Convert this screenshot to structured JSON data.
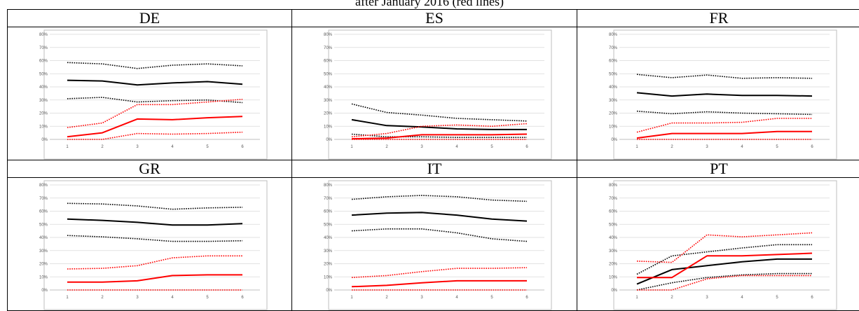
{
  "page": {
    "title": "after January 2016 (red lines)"
  },
  "chart_data": [
    {
      "type": "line",
      "panel": "DE",
      "x": [
        1,
        2,
        3,
        4,
        5,
        6
      ],
      "y_ticks": [
        "0%",
        "10%",
        "20%",
        "30%",
        "40%",
        "50%",
        "60%",
        "70%",
        "80%"
      ],
      "ylim": [
        0,
        80
      ],
      "grid": true,
      "series": [
        {
          "color": "#000000",
          "style": "dotted",
          "values": [
            58.5,
            57.5,
            54,
            56.5,
            57.5,
            56
          ]
        },
        {
          "color": "#000000",
          "style": "solid",
          "values": [
            45,
            44.5,
            41.5,
            43,
            44,
            42
          ]
        },
        {
          "color": "#000000",
          "style": "dotted",
          "values": [
            31,
            32,
            28.5,
            29.5,
            30,
            28
          ]
        },
        {
          "color": "#ff0000",
          "style": "dotted",
          "values": [
            9,
            12.5,
            26.5,
            26.5,
            28.5,
            30.5
          ]
        },
        {
          "color": "#ff0000",
          "style": "solid",
          "values": [
            2,
            5,
            15.5,
            15,
            16.5,
            17.5
          ]
        },
        {
          "color": "#ff0000",
          "style": "dotted",
          "values": [
            0,
            0,
            4.5,
            4,
            4.5,
            5.5
          ]
        }
      ]
    },
    {
      "type": "line",
      "panel": "ES",
      "x": [
        1,
        2,
        3,
        4,
        5,
        6
      ],
      "y_ticks": [
        "0%",
        "10%",
        "20%",
        "30%",
        "40%",
        "50%",
        "60%",
        "70%",
        "80%"
      ],
      "ylim": [
        0,
        80
      ],
      "grid": true,
      "series": [
        {
          "color": "#000000",
          "style": "dotted",
          "values": [
            27,
            20.5,
            18.5,
            16,
            15,
            14
          ]
        },
        {
          "color": "#000000",
          "style": "solid",
          "values": [
            15,
            10.5,
            9.5,
            8,
            7.5,
            7.5
          ]
        },
        {
          "color": "#000000",
          "style": "dotted",
          "values": [
            4,
            2,
            2,
            1.5,
            1.5,
            1.5
          ]
        },
        {
          "color": "#ff0000",
          "style": "dotted",
          "values": [
            2,
            4.5,
            10,
            11,
            10,
            12
          ]
        },
        {
          "color": "#ff0000",
          "style": "solid",
          "values": [
            0.5,
            1,
            3.5,
            3.5,
            3.5,
            4
          ]
        },
        {
          "color": "#ff0000",
          "style": "dotted",
          "values": [
            0,
            0,
            0,
            0,
            0,
            0
          ]
        }
      ]
    },
    {
      "type": "line",
      "panel": "FR",
      "x": [
        1,
        2,
        3,
        4,
        5,
        6
      ],
      "y_ticks": [
        "0%",
        "10%",
        "20%",
        "30%",
        "40%",
        "50%",
        "60%",
        "70%",
        "80%"
      ],
      "ylim": [
        0,
        80
      ],
      "grid": true,
      "series": [
        {
          "color": "#000000",
          "style": "dotted",
          "values": [
            49.5,
            47,
            49,
            46.5,
            47,
            46.5
          ]
        },
        {
          "color": "#000000",
          "style": "solid",
          "values": [
            35.5,
            33,
            34.5,
            33.5,
            33.5,
            33
          ]
        },
        {
          "color": "#000000",
          "style": "dotted",
          "values": [
            21.5,
            19.5,
            21,
            20,
            19.5,
            19
          ]
        },
        {
          "color": "#ff0000",
          "style": "dotted",
          "values": [
            5.5,
            12.5,
            12.5,
            13,
            16,
            16
          ]
        },
        {
          "color": "#ff0000",
          "style": "solid",
          "values": [
            1,
            4.5,
            4.5,
            4.5,
            6,
            6
          ]
        },
        {
          "color": "#ff0000",
          "style": "dotted",
          "values": [
            0,
            0,
            0,
            0,
            0,
            0
          ]
        }
      ]
    },
    {
      "type": "line",
      "panel": "GR",
      "x": [
        1,
        2,
        3,
        4,
        5,
        6
      ],
      "y_ticks": [
        "0%",
        "10%",
        "20%",
        "30%",
        "40%",
        "50%",
        "60%",
        "70%",
        "80%"
      ],
      "ylim": [
        0,
        80
      ],
      "grid": true,
      "series": [
        {
          "color": "#000000",
          "style": "dotted",
          "values": [
            66,
            65.5,
            64,
            61.5,
            62.5,
            63
          ]
        },
        {
          "color": "#000000",
          "style": "solid",
          "values": [
            54,
            53,
            51.5,
            49.5,
            49.5,
            50.5
          ]
        },
        {
          "color": "#000000",
          "style": "dotted",
          "values": [
            41.5,
            40.5,
            39,
            37,
            37,
            37.5
          ]
        },
        {
          "color": "#ff0000",
          "style": "dotted",
          "values": [
            16,
            16.5,
            18.5,
            24.5,
            26,
            26
          ]
        },
        {
          "color": "#ff0000",
          "style": "solid",
          "values": [
            6,
            6,
            7,
            11,
            11.5,
            11.5
          ]
        },
        {
          "color": "#ff0000",
          "style": "dotted",
          "values": [
            0,
            0,
            0,
            0,
            0,
            0
          ]
        }
      ]
    },
    {
      "type": "line",
      "panel": "IT",
      "x": [
        1,
        2,
        3,
        4,
        5,
        6
      ],
      "y_ticks": [
        "0%",
        "10%",
        "20%",
        "30%",
        "40%",
        "50%",
        "60%",
        "70%",
        "80%"
      ],
      "ylim": [
        0,
        80
      ],
      "grid": true,
      "series": [
        {
          "color": "#000000",
          "style": "dotted",
          "values": [
            69,
            71,
            72,
            71,
            68.5,
            67.5
          ]
        },
        {
          "color": "#000000",
          "style": "solid",
          "values": [
            57,
            58.5,
            59,
            57,
            54,
            52.5
          ]
        },
        {
          "color": "#000000",
          "style": "dotted",
          "values": [
            45,
            46.5,
            46.5,
            43.5,
            39,
            37
          ]
        },
        {
          "color": "#ff0000",
          "style": "dotted",
          "values": [
            9.5,
            11,
            14,
            16.5,
            16.5,
            17
          ]
        },
        {
          "color": "#ff0000",
          "style": "solid",
          "values": [
            2.5,
            3.5,
            5.5,
            7,
            7,
            7
          ]
        },
        {
          "color": "#ff0000",
          "style": "dotted",
          "values": [
            0,
            0,
            0,
            0,
            0,
            0
          ]
        }
      ]
    },
    {
      "type": "line",
      "panel": "PT",
      "x": [
        1,
        2,
        3,
        4,
        5,
        6
      ],
      "y_ticks": [
        "0%",
        "10%",
        "20%",
        "30%",
        "40%",
        "50%",
        "60%",
        "70%",
        "80%"
      ],
      "ylim": [
        0,
        80
      ],
      "grid": true,
      "series": [
        {
          "color": "#000000",
          "style": "dotted",
          "values": [
            12,
            26,
            29,
            32,
            34.5,
            34.5
          ]
        },
        {
          "color": "#000000",
          "style": "solid",
          "values": [
            4.5,
            15.5,
            18.5,
            21.5,
            23.5,
            23.5
          ]
        },
        {
          "color": "#000000",
          "style": "dotted",
          "values": [
            0,
            5.5,
            9.5,
            11.5,
            12.5,
            12.5
          ]
        },
        {
          "color": "#ff0000",
          "style": "dotted",
          "values": [
            22,
            21,
            42,
            40.5,
            42,
            43.5
          ]
        },
        {
          "color": "#ff0000",
          "style": "solid",
          "values": [
            9.5,
            9.5,
            26,
            26,
            27,
            28
          ]
        },
        {
          "color": "#ff0000",
          "style": "dotted",
          "values": [
            0,
            0,
            8.5,
            11,
            11,
            11
          ]
        }
      ]
    }
  ]
}
